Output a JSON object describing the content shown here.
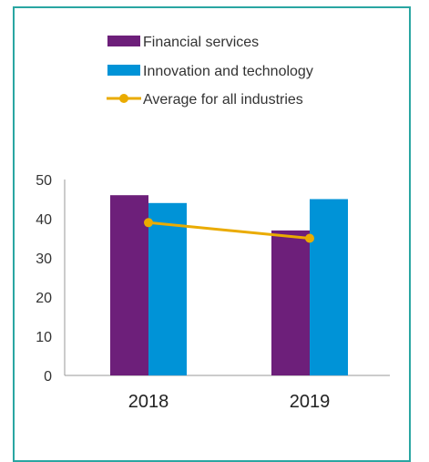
{
  "chart_data": {
    "type": "bar",
    "categories": [
      "2018",
      "2019"
    ],
    "series": [
      {
        "name": "Financial services",
        "kind": "bar",
        "color": "#6d1f7a",
        "values": [
          46,
          37
        ]
      },
      {
        "name": "Innovation and technology",
        "kind": "bar",
        "color": "#0093d7",
        "values": [
          44,
          45
        ]
      },
      {
        "name": "Average for all industries",
        "kind": "line",
        "color": "#eaab00",
        "values": [
          39,
          35
        ]
      }
    ],
    "y_ticks": [
      "0",
      "10",
      "20",
      "30",
      "40",
      "50"
    ],
    "ylim": [
      0,
      50
    ],
    "title": "",
    "xlabel": "",
    "ylabel": "",
    "grid": false,
    "legend_position": "top-left"
  }
}
